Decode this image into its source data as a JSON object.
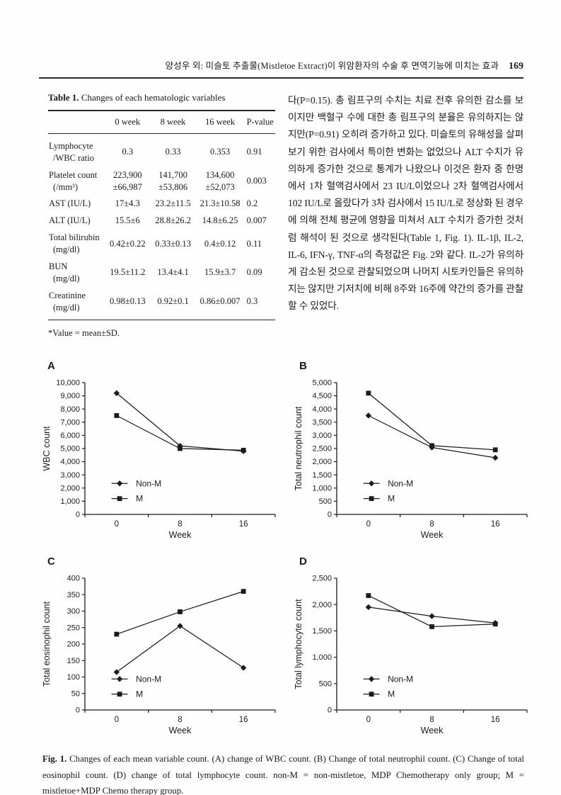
{
  "header": {
    "running_title": "양성우 외: 미슬토 추출물(Mistletoe Extract)이 위암환자의 수술 후 면역기능에 미치는 효과",
    "page_number": "169"
  },
  "table": {
    "title_label": "Table 1.",
    "title_text": "Changes of each hematologic variables",
    "columns": [
      "",
      "0 week",
      "8 week",
      "16 week",
      "P-value"
    ],
    "rows": [
      {
        "label_lines": [
          "Lymphocyte",
          "/WBC ratio"
        ],
        "values": [
          "0.3",
          "0.33",
          "0.353",
          "0.91"
        ]
      },
      {
        "label_lines": [
          "Platelet count",
          "(/mm³)"
        ],
        "values": [
          "223,900\n±66,987",
          "141,700\n±53,806",
          "134,600\n±52,073",
          "0.003"
        ]
      },
      {
        "label_lines": [
          "AST (IU/L)"
        ],
        "values": [
          "17±4.3",
          "23.2±11.5",
          "21.3±10.58",
          "0.2"
        ]
      },
      {
        "label_lines": [
          "ALT (IU/L)"
        ],
        "values": [
          "15.5±6",
          "28.8±26.2",
          "14.8±6.25",
          "0.007"
        ]
      },
      {
        "label_lines": [
          "Total bilirubin",
          "(mg/dl)"
        ],
        "values": [
          "0.42±0.22",
          "0.33±0.13",
          "0.4±0.12",
          "0.11"
        ]
      },
      {
        "label_lines": [
          "BUN",
          "(mg/dl)"
        ],
        "values": [
          "19.5±11.2",
          "13.4±4.1",
          "15.9±3.7",
          "0.09"
        ]
      },
      {
        "label_lines": [
          "Creatinine",
          "(mg/dl)"
        ],
        "values": [
          "0.98±0.13",
          "0.92±0.1",
          "0.86±0.007",
          "0.3"
        ]
      }
    ],
    "footnote": "*Value = mean±SD."
  },
  "body": {
    "paragraph": "다(P=0.15). 총 림프구의 수치는 치료 전후 유의한 감소를 보이지만 백혈구 수에 대한 총 림프구의 분율은 유의하지는 않지만(P=0.91) 오히려 증가하고 있다. 미슬토의 유해성을 살펴보기 위한 검사에서 특이한 변화는 없었으나 ALT 수치가 유의하게 증가한 것으로 통계가 나왔으나 이것은 환자 중 한명에서 1차 혈액검사에서 23 IU/L이었으나 2차 혈액검사에서 102 IU/L로 올랐다가 3차 검사에서 15 IU/L로 정상화 된 경우에 의해 전체 평균에 영향을 미쳐서 ALT 수치가 증가한 것처럼 해석이 된 것으로 생각된다(Table 1, Fig. 1). IL-1β, IL-2, IL-6, IFN-γ, TNF-α의 측정값은 Fig. 2와 같다. IL-2가 유의하게 감소된 것으로 관찰되었으며 나머지 시토카인들은 유의하지는 않지만 기저치에 비해 8주와 16주에 약간의 증가를 관찰할 수 있었다."
  },
  "chart_data": [
    {
      "panel": "A",
      "type": "line",
      "title": "",
      "ylabel": "WBC count",
      "xlabel": "Week",
      "ylim": [
        0,
        10000
      ],
      "ytick_step": 1000,
      "categories": [
        "0",
        "8",
        "16"
      ],
      "grid": false,
      "legend_position": "lower-left",
      "series": [
        {
          "name": "Non-M",
          "marker": "diamond",
          "values": [
            9200,
            5200,
            4800
          ]
        },
        {
          "name": "M",
          "marker": "square",
          "values": [
            7500,
            5000,
            4870
          ]
        }
      ]
    },
    {
      "panel": "B",
      "type": "line",
      "title": "",
      "ylabel": "Total neutrophil count",
      "xlabel": "Week",
      "ylim": [
        0,
        5000
      ],
      "ytick_step": 500,
      "categories": [
        "0",
        "8",
        "16"
      ],
      "grid": false,
      "legend_position": "lower-left",
      "series": [
        {
          "name": "Non-M",
          "marker": "diamond",
          "values": [
            3750,
            2540,
            2150
          ]
        },
        {
          "name": "M",
          "marker": "square",
          "values": [
            4600,
            2610,
            2450
          ]
        }
      ]
    },
    {
      "panel": "C",
      "type": "line",
      "title": "",
      "ylabel": "Total eosinophil count",
      "xlabel": "Week",
      "ylim": [
        0,
        400
      ],
      "ytick_step": 50,
      "categories": [
        "0",
        "8",
        "16"
      ],
      "grid": false,
      "legend_position": "lower-left",
      "series": [
        {
          "name": "Non-M",
          "marker": "diamond",
          "values": [
            115,
            255,
            128
          ]
        },
        {
          "name": "M",
          "marker": "square",
          "values": [
            230,
            298,
            360
          ]
        }
      ]
    },
    {
      "panel": "D",
      "type": "line",
      "title": "",
      "ylabel": "Total lymphocyte count",
      "xlabel": "Week",
      "ylim": [
        0,
        2500
      ],
      "ytick_step": 500,
      "categories": [
        "0",
        "8",
        "16"
      ],
      "grid": false,
      "legend_position": "lower-left",
      "series": [
        {
          "name": "Non-M",
          "marker": "diamond",
          "values": [
            1950,
            1780,
            1650
          ]
        },
        {
          "name": "M",
          "marker": "square",
          "values": [
            2170,
            1580,
            1630
          ]
        }
      ]
    }
  ],
  "caption": {
    "label": "Fig. 1.",
    "text": "Changes of each mean variable count. (A) change of WBC count. (B) Change of total neutrophil count. (C) Change of total eosinophil count. (D) change of total lymphocyte count. non-M = non-mistletoe, MDP Chemotherapy only group; M = mistletoe+MDP Chemo therapy group."
  }
}
